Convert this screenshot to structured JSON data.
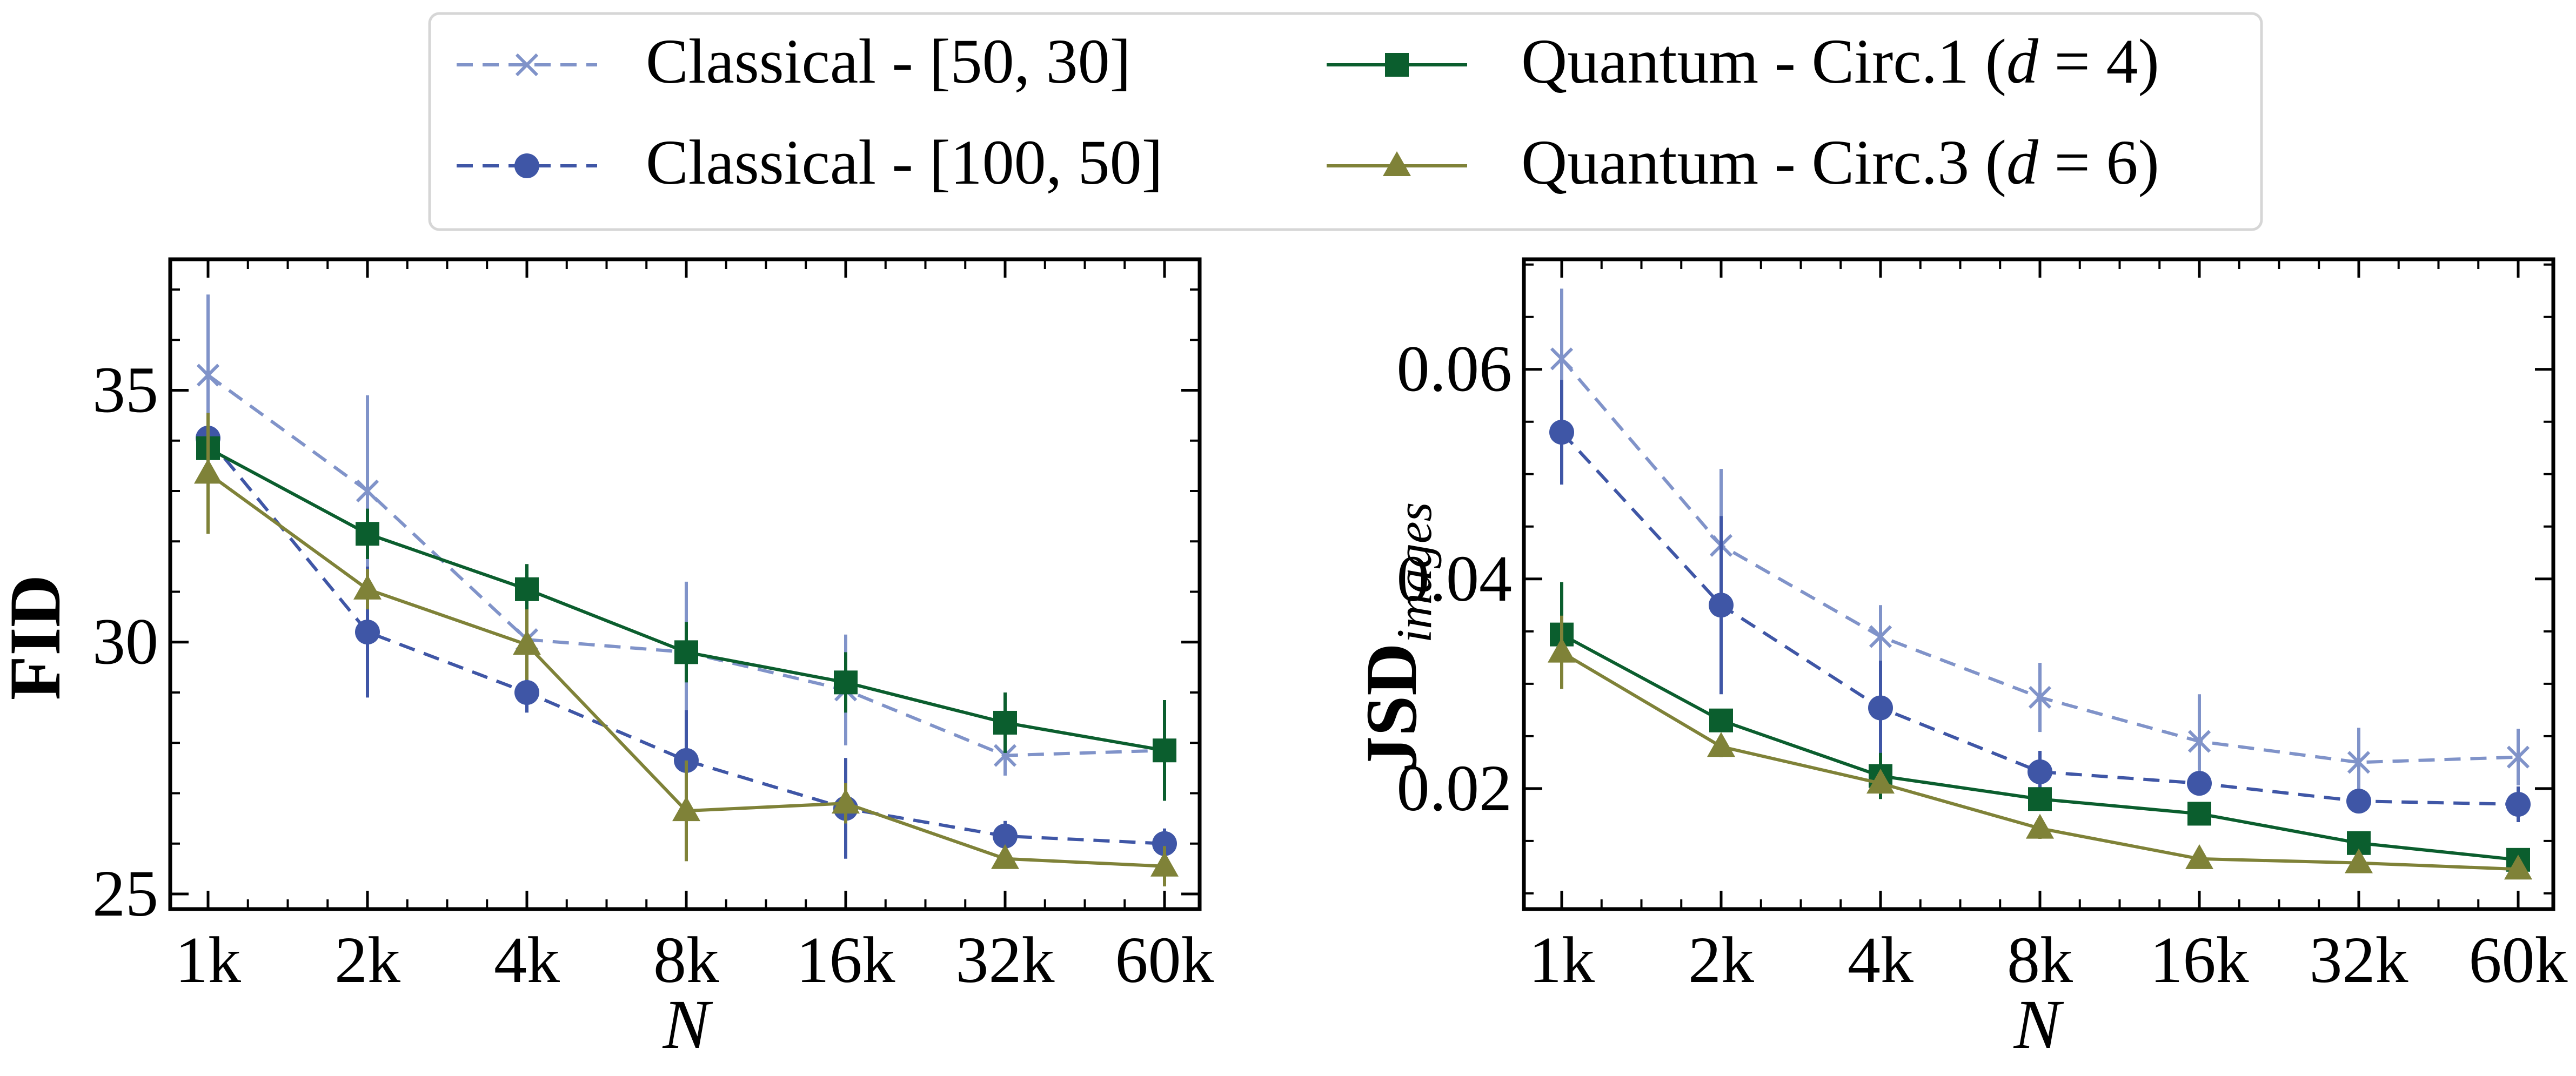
{
  "legend": {
    "position": "top-center",
    "columns": 2,
    "entries": [
      {
        "label": "Classical - [50, 30]",
        "series_key": "c5030"
      },
      {
        "label": "Quantum - Circ.1 (",
        "italic": "d",
        "suffix": " = 4)",
        "series_key": "q1"
      },
      {
        "label": "Classical - [100, 50]",
        "series_key": "c10050"
      },
      {
        "label": "Quantum - Circ.3 (",
        "italic": "d",
        "suffix": " = 6)",
        "series_key": "q3"
      }
    ]
  },
  "series_styles": {
    "c5030": {
      "color": "#8093c9",
      "marker": "x",
      "dash": "dashed"
    },
    "c10050": {
      "color": "#3f56a6",
      "marker": "circle",
      "dash": "dashed"
    },
    "q1": {
      "color": "#0b5e2e",
      "marker": "square",
      "dash": "solid"
    },
    "q3": {
      "color": "#7f8238",
      "marker": "triangle",
      "dash": "solid"
    }
  },
  "chart_data": [
    {
      "type": "line",
      "xlabel": "N",
      "ylabel": "FID",
      "ylabel_subscript": "",
      "x": [
        "1k",
        "2k",
        "4k",
        "8k",
        "16k",
        "32k",
        "60k"
      ],
      "ylim": [
        24.7,
        37.6
      ],
      "yticks": [
        25,
        30,
        35
      ],
      "ytick_labels": [
        "25",
        "30",
        "35"
      ],
      "minor_yticks": [
        26,
        27,
        28,
        29,
        31,
        32,
        33,
        34,
        36,
        37
      ],
      "grid": false,
      "series": [
        {
          "key": "c5030",
          "values": [
            35.3,
            33.0,
            30.05,
            29.8,
            29.05,
            27.75,
            27.85
          ],
          "errors": [
            1.6,
            1.9,
            0.3,
            1.4,
            1.1,
            0.4,
            0.2
          ]
        },
        {
          "key": "c10050",
          "values": [
            34.05,
            30.2,
            29.0,
            27.65,
            26.7,
            26.15,
            26.0
          ],
          "errors": [
            0.3,
            1.3,
            0.4,
            1.0,
            1.0,
            0.3,
            0.3
          ]
        },
        {
          "key": "q1",
          "values": [
            33.85,
            32.15,
            31.05,
            29.8,
            29.2,
            28.4,
            27.85
          ],
          "errors": [
            0.3,
            0.5,
            0.5,
            0.6,
            0.6,
            0.6,
            1.0
          ]
        },
        {
          "key": "q3",
          "values": [
            33.35,
            31.05,
            29.95,
            26.65,
            26.8,
            25.7,
            25.55
          ],
          "errors": [
            1.2,
            0.4,
            0.7,
            1.0,
            0.4,
            0.2,
            0.4
          ]
        }
      ]
    },
    {
      "type": "line",
      "xlabel": "N",
      "ylabel": "JSD",
      "ylabel_subscript": "images",
      "x": [
        "1k",
        "2k",
        "4k",
        "8k",
        "16k",
        "32k",
        "60k"
      ],
      "ylim": [
        0.0085,
        0.0705
      ],
      "yticks": [
        0.02,
        0.04,
        0.06
      ],
      "ytick_labels": [
        "0.02",
        "0.04",
        "0.06"
      ],
      "minor_yticks": [
        0.01,
        0.015,
        0.025,
        0.03,
        0.035,
        0.045,
        0.05,
        0.055,
        0.065,
        0.07
      ],
      "grid": false,
      "series": [
        {
          "key": "c5030",
          "values": [
            0.061,
            0.0432,
            0.0345,
            0.0287,
            0.0245,
            0.0225,
            0.023
          ],
          "errors": [
            0.0067,
            0.0073,
            0.003,
            0.0033,
            0.0045,
            0.0033,
            0.0027
          ]
        },
        {
          "key": "c10050",
          "values": [
            0.054,
            0.0375,
            0.0277,
            0.0216,
            0.0205,
            0.0188,
            0.0185
          ],
          "errors": [
            0.005,
            0.0085,
            0.0045,
            0.002,
            0.001,
            0.001,
            0.0017
          ]
        },
        {
          "key": "q1",
          "values": [
            0.0347,
            0.0265,
            0.0212,
            0.019,
            0.0176,
            0.0148,
            0.0132
          ],
          "errors": [
            0.005,
            0.001,
            0.0022,
            0.001,
            0.001,
            0.001,
            0.001
          ]
        },
        {
          "key": "q3",
          "values": [
            0.033,
            0.024,
            0.0205,
            0.0162,
            0.0133,
            0.0129,
            0.0123
          ],
          "errors": [
            0.0035,
            0.001,
            0.001,
            0.001,
            0.0008,
            0.0006,
            0.0008
          ]
        }
      ]
    }
  ]
}
